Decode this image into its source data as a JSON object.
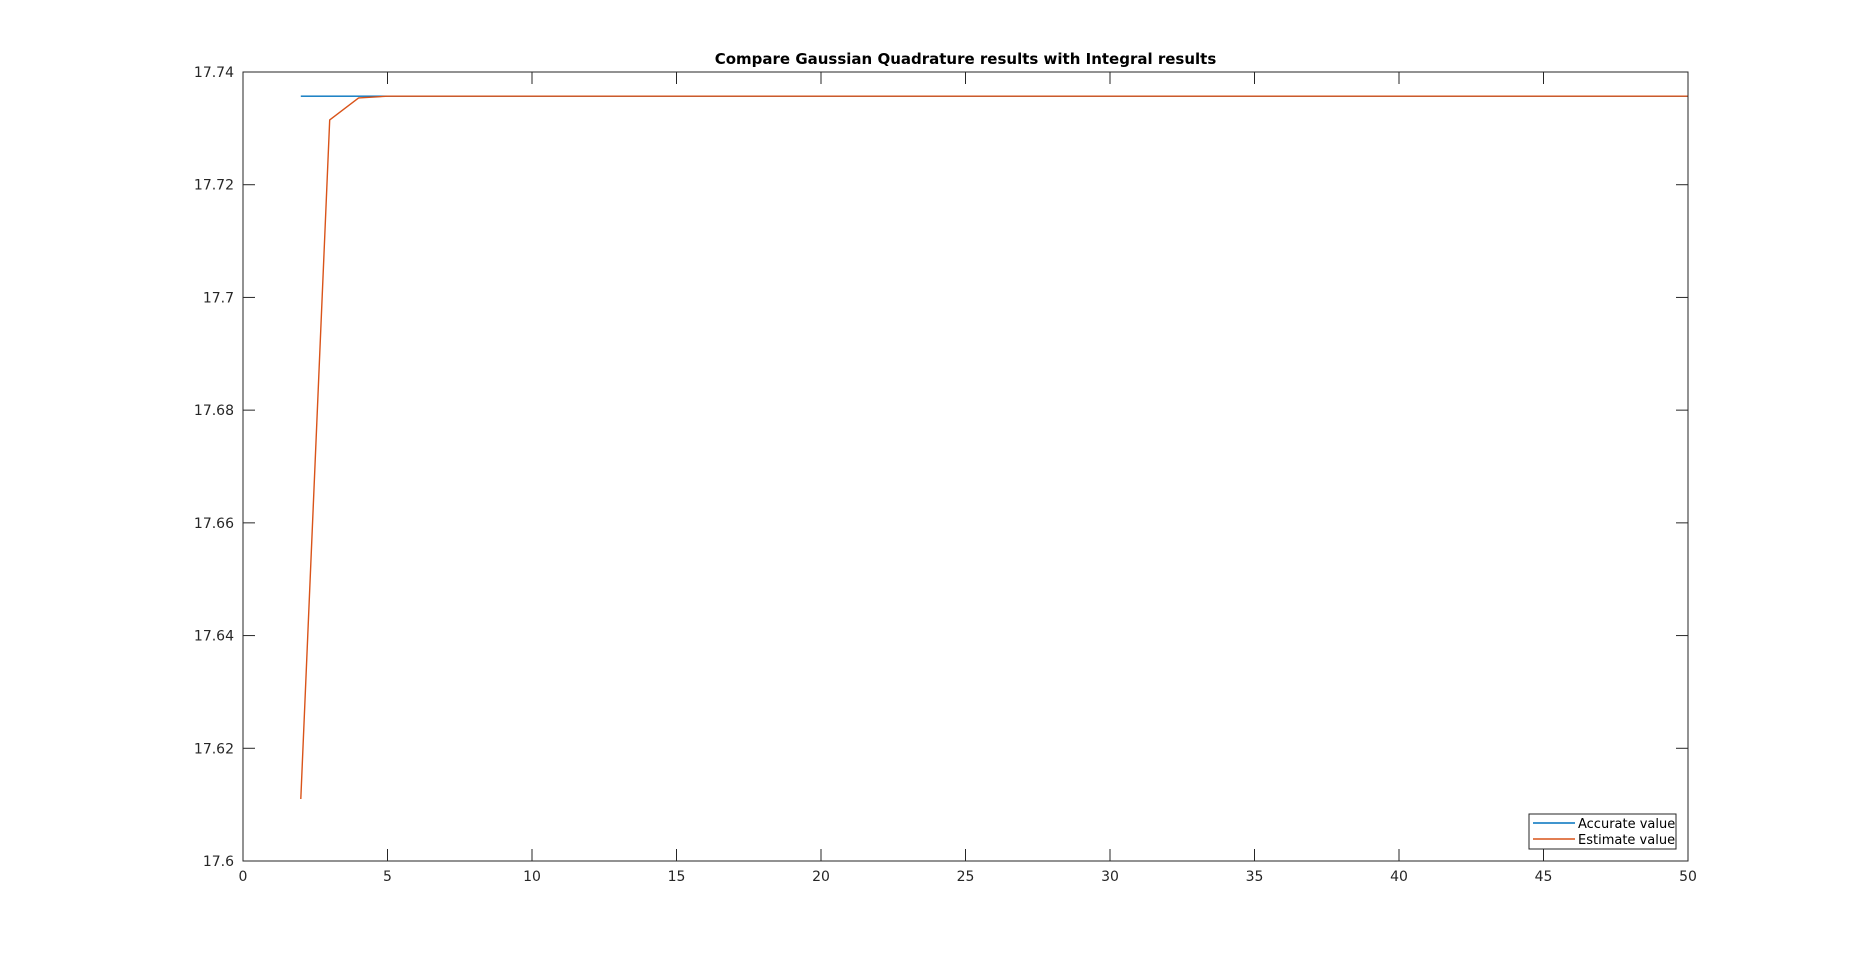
{
  "chart_data": {
    "type": "line",
    "title": "Compare Gaussian Quadrature results with Integral results",
    "xlabel": "",
    "ylabel": "",
    "xlim": [
      0,
      50
    ],
    "ylim": [
      17.6,
      17.74
    ],
    "xticks": [
      0,
      5,
      10,
      15,
      20,
      25,
      30,
      35,
      40,
      45,
      50
    ],
    "xtick_labels": [
      "0",
      "5",
      "10",
      "15",
      "20",
      "25",
      "30",
      "35",
      "40",
      "45",
      "50"
    ],
    "yticks": [
      17.6,
      17.62,
      17.64,
      17.66,
      17.68,
      17.7,
      17.72,
      17.74
    ],
    "ytick_labels": [
      "17.6",
      "17.62",
      "17.64",
      "17.66",
      "17.68",
      "17.7",
      "17.72",
      "17.74"
    ],
    "grid": false,
    "legend_position": "bottom-right",
    "series": [
      {
        "name": "Accurate value",
        "color": "#0072BD",
        "x": [
          2,
          50
        ],
        "y": [
          17.7357,
          17.7357
        ]
      },
      {
        "name": "Estimate value",
        "color": "#D95319",
        "x": [
          2,
          3,
          4,
          5,
          6,
          50
        ],
        "y": [
          17.611,
          17.7315,
          17.7354,
          17.7357,
          17.7357,
          17.7357
        ]
      }
    ]
  }
}
